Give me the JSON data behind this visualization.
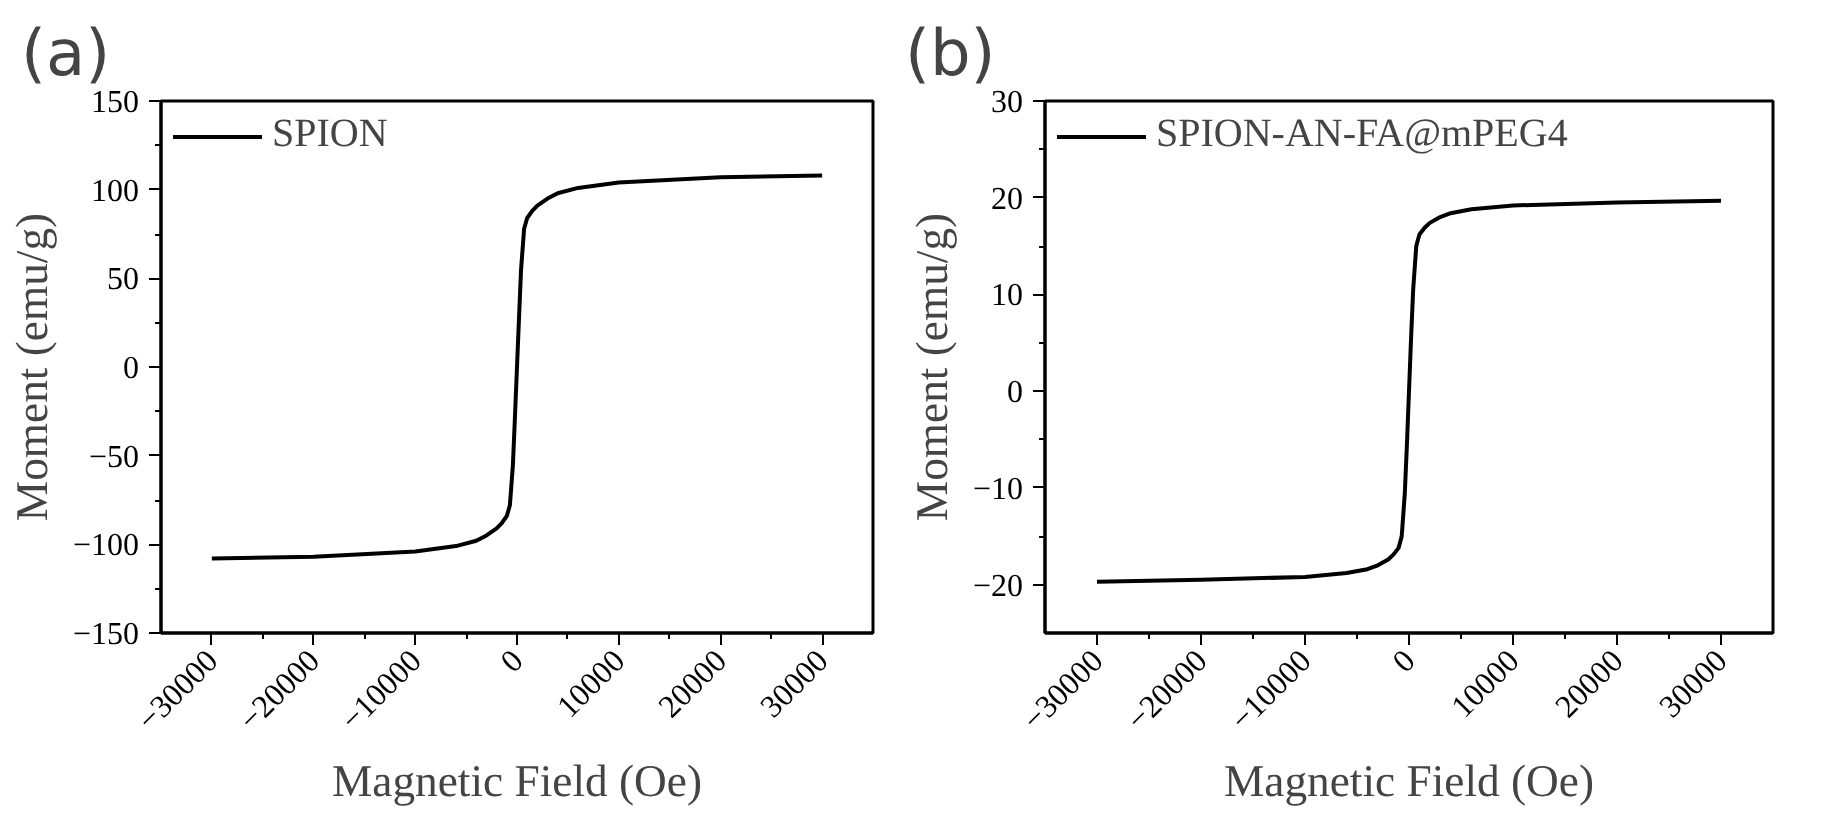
{
  "chart_data": [
    {
      "type": "line",
      "title": "(a)",
      "xlabel": "Magnetic Field (Oe)",
      "ylabel": "Moment (emu/g)",
      "xlim": [
        -35000,
        35000
      ],
      "xticks": [
        -30000,
        -20000,
        -10000,
        0,
        10000,
        20000,
        30000
      ],
      "ylim": [
        -150,
        150
      ],
      "yticks": [
        -150,
        -100,
        -50,
        0,
        50,
        100,
        150
      ],
      "legend": "top left",
      "grid": false,
      "series": [
        {
          "name": "SPION",
          "color": "#000000",
          "x": [
            -30000,
            -20000,
            -10000,
            -6000,
            -4000,
            -3000,
            -2000,
            -1500,
            -1000,
            -700,
            -400,
            -200,
            0,
            200,
            400,
            700,
            1000,
            1500,
            2000,
            3000,
            4000,
            6000,
            10000,
            20000,
            30000
          ],
          "values": [
            -108,
            -107,
            -104,
            -101,
            -98,
            -95,
            -91,
            -88,
            -84,
            -78,
            -55,
            -28,
            0,
            28,
            55,
            78,
            84,
            88,
            91,
            95,
            98,
            101,
            104,
            107,
            108
          ]
        }
      ]
    },
    {
      "type": "line",
      "title": "(b)",
      "xlabel": "Magnetic Field (Oe)",
      "ylabel": "Moment (emu/g)",
      "xlim": [
        -35000,
        35000
      ],
      "xticks": [
        -30000,
        -20000,
        -10000,
        0,
        10000,
        20000,
        30000
      ],
      "ylim": [
        -25,
        30
      ],
      "yticks": [
        -20,
        -10,
        0,
        10,
        20,
        30
      ],
      "legend": "top left",
      "grid": false,
      "series": [
        {
          "name": "SPION-AN-FA@mPEG4",
          "color": "#000000",
          "x": [
            -30000,
            -20000,
            -10000,
            -6000,
            -4000,
            -3000,
            -2000,
            -1500,
            -1000,
            -700,
            -400,
            -200,
            0,
            200,
            400,
            700,
            1000,
            1500,
            2000,
            3000,
            4000,
            6000,
            10000,
            20000,
            30000
          ],
          "values": [
            -19.7,
            -19.5,
            -19.2,
            -18.8,
            -18.4,
            -18.0,
            -17.4,
            -16.9,
            -16.2,
            -15.0,
            -10.5,
            -5.5,
            0,
            5.5,
            10.5,
            15.0,
            16.2,
            16.9,
            17.4,
            18.0,
            18.4,
            18.8,
            19.2,
            19.5,
            19.7
          ]
        }
      ]
    }
  ]
}
